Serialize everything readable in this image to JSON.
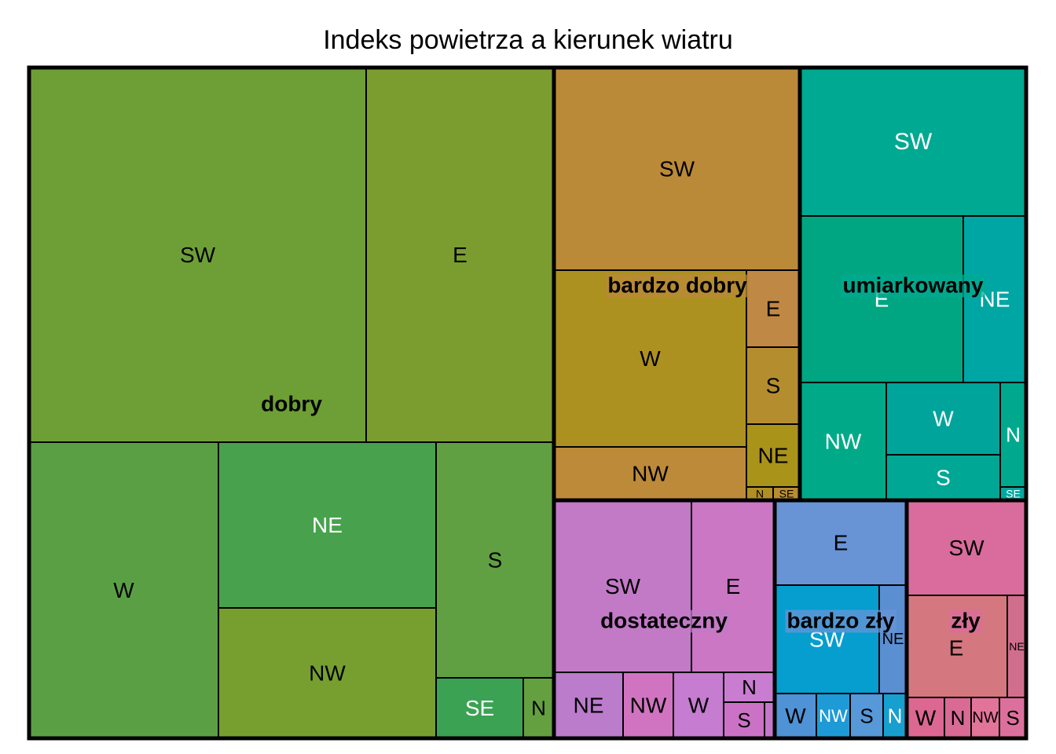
{
  "chart_data": {
    "type": "treemap",
    "title": "Indeks powietrza a kierunek wiatru",
    "groups": [
      {
        "name": "dobry",
        "leaves": [
          {
            "label": "SW",
            "color": "#6e9f36",
            "text_color": "#000000"
          },
          {
            "label": "E",
            "color": "#7b9d2f",
            "text_color": "#000000"
          },
          {
            "label": "W",
            "color": "#5b9f45",
            "text_color": "#000000"
          },
          {
            "label": "NE",
            "color": "#48a24d",
            "text_color": "#ffffff"
          },
          {
            "label": "NW",
            "color": "#779f30",
            "text_color": "#000000"
          },
          {
            "label": "S",
            "color": "#61a042",
            "text_color": "#000000"
          },
          {
            "label": "SE",
            "color": "#3aa252",
            "text_color": "#ffffff"
          },
          {
            "label": "N",
            "color": "#65a040",
            "text_color": "#000000"
          }
        ]
      },
      {
        "name": "bardzo dobry",
        "leaves": [
          {
            "label": "SW",
            "color": "#ba8a38",
            "text_color": "#000000"
          },
          {
            "label": "W",
            "color": "#ad9120",
            "text_color": "#000000"
          },
          {
            "label": "NW",
            "color": "#bd8a39",
            "text_color": "#000000"
          },
          {
            "label": "E",
            "color": "#c08845",
            "text_color": "#000000"
          },
          {
            "label": "S",
            "color": "#b48e2e",
            "text_color": "#000000"
          },
          {
            "label": "NE",
            "color": "#a99319",
            "text_color": "#000000"
          },
          {
            "label": "N",
            "color": "#b18f22",
            "text_color": "#000000"
          },
          {
            "label": "SE",
            "color": "#b98c30",
            "text_color": "#000000"
          }
        ]
      },
      {
        "name": "umiarkowany",
        "leaves": [
          {
            "label": "SW",
            "color": "#00a991",
            "text_color": "#ffffff"
          },
          {
            "label": "E",
            "color": "#00a681",
            "text_color": "#ffffff"
          },
          {
            "label": "NE",
            "color": "#00a6a4",
            "text_color": "#ffffff"
          },
          {
            "label": "NW",
            "color": "#00aa88",
            "text_color": "#ffffff"
          },
          {
            "label": "W",
            "color": "#00a49b",
            "text_color": "#ffffff"
          },
          {
            "label": "S",
            "color": "#00a795",
            "text_color": "#ffffff"
          },
          {
            "label": "N",
            "color": "#00a98d",
            "text_color": "#ffffff"
          },
          {
            "label": "SE",
            "color": "#00a8a1",
            "text_color": "#ffffff"
          }
        ]
      },
      {
        "name": "dostateczny",
        "leaves": [
          {
            "label": "SW",
            "color": "#c27ac6",
            "text_color": "#000000"
          },
          {
            "label": "E",
            "color": "#cb77c4",
            "text_color": "#000000"
          },
          {
            "label": "NE",
            "color": "#bb7ccb",
            "text_color": "#000000"
          },
          {
            "label": "NW",
            "color": "#d074c1",
            "text_color": "#000000"
          },
          {
            "label": "W",
            "color": "#c67cd1",
            "text_color": "#000000"
          },
          {
            "label": "N",
            "color": "#c97dd0",
            "text_color": "#000000"
          },
          {
            "label": "S",
            "color": "#cc72c6",
            "text_color": "#000000"
          },
          {
            "label": "",
            "color": "#c478c9",
            "text_color": "#000000"
          }
        ]
      },
      {
        "name": "bardzo zły",
        "leaves": [
          {
            "label": "E",
            "color": "#6894d6",
            "text_color": "#000000"
          },
          {
            "label": "SW",
            "color": "#059ecf",
            "text_color": "#ffffff"
          },
          {
            "label": "NE",
            "color": "#5a8fd2",
            "text_color": "#000000"
          },
          {
            "label": "W",
            "color": "#4f92d5",
            "text_color": "#000000"
          },
          {
            "label": "NW",
            "color": "#1e9bd6",
            "text_color": "#ffffff"
          },
          {
            "label": "S",
            "color": "#5698d8",
            "text_color": "#000000"
          },
          {
            "label": "N",
            "color": "#179fd0",
            "text_color": "#ffffff"
          }
        ]
      },
      {
        "name": "zły",
        "leaves": [
          {
            "label": "SW",
            "color": "#d96c9c",
            "text_color": "#000000"
          },
          {
            "label": "E",
            "color": "#d5777f",
            "text_color": "#000000"
          },
          {
            "label": "NE",
            "color": "#d26e8d",
            "text_color": "#000000"
          },
          {
            "label": "W",
            "color": "#dc6892",
            "text_color": "#000000"
          },
          {
            "label": "N",
            "color": "#d96a93",
            "text_color": "#000000"
          },
          {
            "label": "NW",
            "color": "#e27499",
            "text_color": "#000000"
          },
          {
            "label": "S",
            "color": "#dc709c",
            "text_color": "#000000"
          }
        ]
      }
    ]
  }
}
